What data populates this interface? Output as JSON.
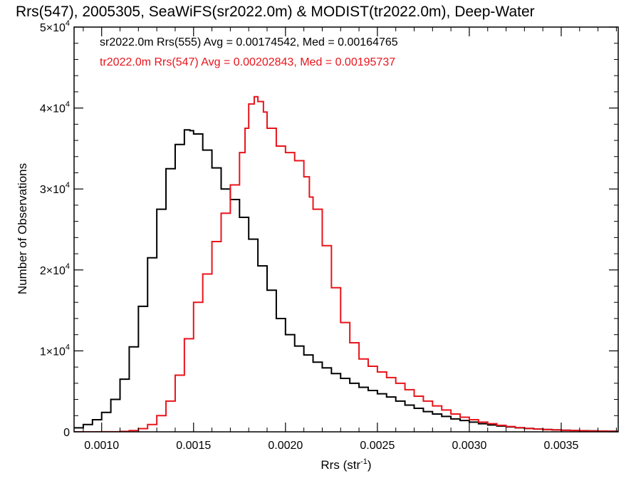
{
  "chart_data": {
    "type": "line",
    "title": "Rrs(547), 2005305, SeaWiFS(sr2022.0m) & MODIST(tr2022.0m), Deep-Water",
    "xlabel": "Rrs (str",
    "xlabel_sup": "-1",
    "xlabel_end": ")",
    "ylabel": "Number of Observations",
    "xlim": [
      0.00085,
      0.00381
    ],
    "ylim": [
      0,
      50000
    ],
    "x_ticks": [
      {
        "value": 0.001,
        "label": "0.0010"
      },
      {
        "value": 0.0015,
        "label": "0.0015"
      },
      {
        "value": 0.002,
        "label": "0.0020"
      },
      {
        "value": 0.0025,
        "label": "0.0025"
      },
      {
        "value": 0.003,
        "label": "0.0030"
      },
      {
        "value": 0.0035,
        "label": "0.0035"
      }
    ],
    "y_ticks": [
      {
        "value": 0,
        "mant": "0",
        "sup": ""
      },
      {
        "value": 10000,
        "mant": "1×10",
        "sup": "4"
      },
      {
        "value": 20000,
        "mant": "2×10",
        "sup": "4"
      },
      {
        "value": 30000,
        "mant": "3×10",
        "sup": "4"
      },
      {
        "value": 40000,
        "mant": "4×10",
        "sup": "4"
      },
      {
        "value": 50000,
        "mant": "5×10",
        "sup": "4"
      }
    ],
    "grid": false,
    "legend_position": "top-left",
    "series": [
      {
        "name": "sr2022.0m Rrs(555) Avg = 0.00174542, Med = 0.00164765",
        "color": "#000000",
        "points": [
          [
            0.00085,
            500
          ],
          [
            0.0009,
            900
          ],
          [
            0.00095,
            1500
          ],
          [
            0.001,
            2400
          ],
          [
            0.00105,
            4000
          ],
          [
            0.0011,
            6500
          ],
          [
            0.00115,
            10500
          ],
          [
            0.0012,
            15500
          ],
          [
            0.00125,
            21500
          ],
          [
            0.0013,
            27500
          ],
          [
            0.00135,
            32500
          ],
          [
            0.0014,
            35500
          ],
          [
            0.00145,
            37300
          ],
          [
            0.00148,
            37200
          ],
          [
            0.0015,
            36800
          ],
          [
            0.00155,
            34800
          ],
          [
            0.0016,
            32600
          ],
          [
            0.00165,
            30000
          ],
          [
            0.0017,
            28700
          ],
          [
            0.00175,
            26500
          ],
          [
            0.0018,
            23800
          ],
          [
            0.00185,
            20500
          ],
          [
            0.0019,
            17500
          ],
          [
            0.00195,
            14000
          ],
          [
            0.002,
            12000
          ],
          [
            0.00205,
            10600
          ],
          [
            0.0021,
            9500
          ],
          [
            0.00215,
            8600
          ],
          [
            0.0022,
            7900
          ],
          [
            0.00225,
            7200
          ],
          [
            0.0023,
            6600
          ],
          [
            0.00235,
            6000
          ],
          [
            0.0024,
            5500
          ],
          [
            0.00245,
            5100
          ],
          [
            0.0025,
            4700
          ],
          [
            0.00255,
            4300
          ],
          [
            0.0026,
            3800
          ],
          [
            0.00265,
            3300
          ],
          [
            0.0027,
            2900
          ],
          [
            0.00275,
            2500
          ],
          [
            0.0028,
            2200
          ],
          [
            0.00285,
            1900
          ],
          [
            0.0029,
            1600
          ],
          [
            0.00295,
            1400
          ],
          [
            0.003,
            1200
          ],
          [
            0.00305,
            1000
          ],
          [
            0.0031,
            850
          ],
          [
            0.00315,
            720
          ],
          [
            0.0032,
            600
          ],
          [
            0.00325,
            500
          ],
          [
            0.0033,
            420
          ],
          [
            0.00335,
            350
          ],
          [
            0.0034,
            290
          ],
          [
            0.00345,
            240
          ],
          [
            0.0035,
            200
          ],
          [
            0.00355,
            170
          ],
          [
            0.0036,
            140
          ],
          [
            0.00365,
            120
          ],
          [
            0.0037,
            100
          ],
          [
            0.00375,
            80
          ],
          [
            0.00381,
            60
          ]
        ]
      },
      {
        "name": "tr2022.0m Rrs(547) Avg = 0.00202843, Med = 0.00195737",
        "color": "#e8141b",
        "points": [
          [
            0.00085,
            0
          ],
          [
            0.001,
            10
          ],
          [
            0.0011,
            50
          ],
          [
            0.00115,
            150
          ],
          [
            0.0012,
            400
          ],
          [
            0.00125,
            900
          ],
          [
            0.0013,
            2000
          ],
          [
            0.00135,
            3800
          ],
          [
            0.0014,
            7000
          ],
          [
            0.00145,
            11500
          ],
          [
            0.0015,
            16000
          ],
          [
            0.00155,
            19500
          ],
          [
            0.0016,
            23500
          ],
          [
            0.00165,
            27000
          ],
          [
            0.0017,
            30500
          ],
          [
            0.00175,
            34500
          ],
          [
            0.00178,
            37500
          ],
          [
            0.0018,
            40500
          ],
          [
            0.00183,
            41400
          ],
          [
            0.00185,
            40800
          ],
          [
            0.00188,
            39500
          ],
          [
            0.0019,
            37500
          ],
          [
            0.00195,
            35300
          ],
          [
            0.002,
            34500
          ],
          [
            0.00205,
            33500
          ],
          [
            0.0021,
            31500
          ],
          [
            0.00213,
            29000
          ],
          [
            0.00215,
            27500
          ],
          [
            0.0022,
            23000
          ],
          [
            0.00225,
            17800
          ],
          [
            0.0023,
            13500
          ],
          [
            0.00235,
            11000
          ],
          [
            0.0024,
            9000
          ],
          [
            0.00245,
            8100
          ],
          [
            0.0025,
            7400
          ],
          [
            0.00255,
            6700
          ],
          [
            0.0026,
            6000
          ],
          [
            0.00265,
            5200
          ],
          [
            0.0027,
            4400
          ],
          [
            0.00275,
            3800
          ],
          [
            0.0028,
            3200
          ],
          [
            0.00285,
            2700
          ],
          [
            0.0029,
            2200
          ],
          [
            0.00295,
            1800
          ],
          [
            0.003,
            1500
          ],
          [
            0.00305,
            1200
          ],
          [
            0.0031,
            1000
          ],
          [
            0.00315,
            800
          ],
          [
            0.0032,
            650
          ],
          [
            0.00325,
            520
          ],
          [
            0.0033,
            420
          ],
          [
            0.00335,
            340
          ],
          [
            0.0034,
            280
          ],
          [
            0.00345,
            230
          ],
          [
            0.0035,
            190
          ],
          [
            0.00355,
            160
          ],
          [
            0.0036,
            130
          ],
          [
            0.00365,
            110
          ],
          [
            0.0037,
            90
          ],
          [
            0.00375,
            70
          ],
          [
            0.00381,
            50
          ]
        ]
      }
    ]
  }
}
